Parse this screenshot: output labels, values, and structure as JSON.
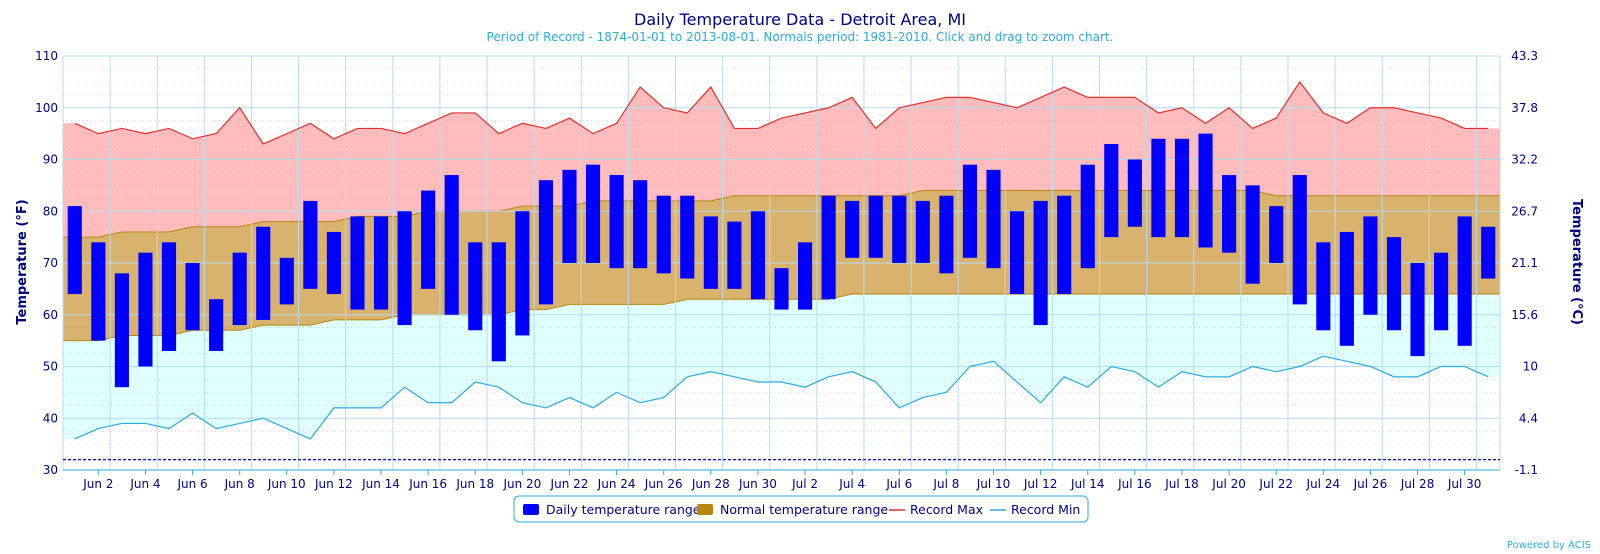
{
  "chart_data": {
    "type": "bar",
    "title": "Daily Temperature Data - Detroit Area, MI",
    "subtitle": "Period of Record - 1874-01-01 to 2013-08-01. Normals period: 1981-2010. Click and drag to zoom chart.",
    "ylabel": "Temperature (°F)",
    "ylabel_right": "Temperature (°C)",
    "ylim": [
      30,
      110
    ],
    "yticks": [
      30,
      40,
      50,
      60,
      70,
      80,
      90,
      100,
      110
    ],
    "yticks_right": [
      "-1.1",
      "4.4",
      "10",
      "15.6",
      "21.1",
      "26.7",
      "32.2",
      "37.8",
      "43.3"
    ],
    "x_tick_labels": [
      "Jun 2",
      "Jun 4",
      "Jun 6",
      "Jun 8",
      "Jun 10",
      "Jun 12",
      "Jun 14",
      "Jun 16",
      "Jun 18",
      "Jun 20",
      "Jun 22",
      "Jun 24",
      "Jun 26",
      "Jun 28",
      "Jun 30",
      "Jul 2",
      "Jul 4",
      "Jul 6",
      "Jul 8",
      "Jul 10",
      "Jul 12",
      "Jul 14",
      "Jul 16",
      "Jul 18",
      "Jul 20",
      "Jul 22",
      "Jul 24",
      "Jul 26",
      "Jul 28",
      "Jul 30"
    ],
    "day_count": 61,
    "freezing_line": 32,
    "daily_range": {
      "low": [
        64,
        55,
        46,
        50,
        53,
        57,
        53,
        58,
        59,
        62,
        65,
        64,
        61,
        61,
        58,
        65,
        60,
        57,
        51,
        56,
        62,
        70,
        70,
        69,
        69,
        68,
        67,
        65,
        65,
        63,
        61,
        61,
        63,
        71,
        71,
        70,
        70,
        68,
        71,
        69,
        64,
        58,
        64,
        69,
        75,
        77,
        75,
        75,
        73,
        72,
        66,
        70,
        62,
        57,
        54,
        60,
        57,
        52,
        57,
        54,
        67
      ],
      "high": [
        81,
        74,
        68,
        72,
        74,
        70,
        63,
        72,
        77,
        71,
        82,
        76,
        79,
        79,
        80,
        84,
        87,
        74,
        74,
        80,
        86,
        88,
        89,
        87,
        86,
        83,
        83,
        79,
        78,
        80,
        69,
        74,
        83,
        82,
        83,
        83,
        82,
        83,
        89,
        88,
        80,
        82,
        83,
        89,
        93,
        90,
        94,
        94,
        95,
        87,
        85,
        81,
        87,
        74,
        76,
        79,
        75,
        70,
        72,
        79,
        77
      ]
    },
    "normal_range": {
      "low": [
        55,
        55,
        56,
        56,
        56,
        57,
        57,
        57,
        58,
        58,
        58,
        59,
        59,
        59,
        60,
        60,
        60,
        60,
        60,
        61,
        61,
        62,
        62,
        62,
        62,
        62,
        63,
        63,
        63,
        63,
        63,
        63,
        63,
        64,
        64,
        64,
        64,
        64,
        64,
        64,
        64,
        64,
        64,
        64,
        64,
        64,
        64,
        64,
        64,
        64,
        64,
        64,
        64,
        64,
        64,
        64,
        64,
        64,
        64,
        64,
        64
      ],
      "high": [
        75,
        75,
        76,
        76,
        76,
        77,
        77,
        77,
        78,
        78,
        78,
        78,
        79,
        79,
        79,
        80,
        80,
        80,
        80,
        81,
        81,
        81,
        82,
        82,
        82,
        82,
        82,
        82,
        83,
        83,
        83,
        83,
        83,
        83,
        83,
        83,
        84,
        84,
        84,
        84,
        84,
        84,
        84,
        84,
        84,
        84,
        84,
        84,
        84,
        84,
        84,
        83,
        83,
        83,
        83,
        83,
        83,
        83,
        83,
        83,
        83
      ]
    },
    "record_max": [
      97,
      95,
      96,
      95,
      96,
      94,
      95,
      100,
      93,
      95,
      97,
      94,
      96,
      96,
      95,
      97,
      99,
      99,
      95,
      97,
      96,
      98,
      95,
      97,
      104,
      100,
      99,
      104,
      96,
      96,
      98,
      99,
      100,
      102,
      96,
      100,
      101,
      102,
      102,
      101,
      100,
      102,
      104,
      102,
      102,
      102,
      99,
      100,
      97,
      100,
      96,
      98,
      105,
      99,
      97,
      100,
      100,
      99,
      98,
      96,
      96
    ],
    "record_min": [
      36,
      38,
      39,
      39,
      38,
      41,
      38,
      39,
      40,
      38,
      36,
      42,
      42,
      42,
      46,
      43,
      43,
      47,
      46,
      43,
      42,
      44,
      42,
      45,
      43,
      44,
      48,
      49,
      48,
      47,
      47,
      46,
      48,
      49,
      47,
      42,
      44,
      45,
      50,
      51,
      47,
      43,
      48,
      46,
      50,
      49,
      46,
      49,
      48,
      48,
      50,
      49,
      50,
      52,
      51,
      50,
      48,
      48,
      50,
      50,
      48
    ],
    "legend": [
      {
        "label": "Daily temperature range",
        "color": "#0000ff"
      },
      {
        "label": "Normal temperature range",
        "color": "#b8860b"
      },
      {
        "label": "Record Max",
        "color": "#e0312e"
      },
      {
        "label": "Record Min",
        "color": "#2eaadc"
      }
    ],
    "legend_placement": "bottom",
    "grid": true
  },
  "credit": "Powered by ACIS",
  "colors": {
    "title": "#000080",
    "subtitle": "#2eaadc",
    "record_max_fill": "#ffbcbc",
    "record_min_fill": "#e0ffff",
    "normal_fill": "#d9b36e",
    "grid": "#b6dcf0"
  }
}
